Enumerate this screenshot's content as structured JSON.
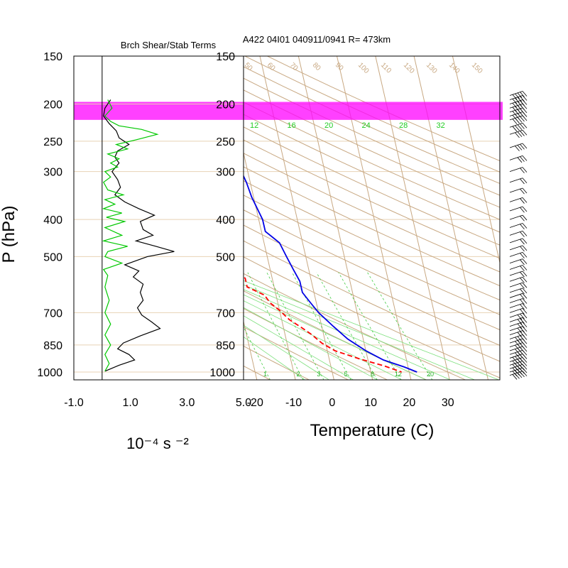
{
  "chart_data": [
    {
      "type": "line",
      "title": "Brch Shear/Stab Terms",
      "xlabel": "10⁻⁴ s ⁻²",
      "ylabel": "P (hPa)",
      "x_ticks": [
        "-1.0",
        "1.0",
        "3.0",
        "5.0"
      ],
      "xlim": [
        -1.0,
        5.0
      ],
      "y_ticks": [
        150,
        200,
        250,
        300,
        400,
        500,
        700,
        850,
        1000
      ],
      "ylim": [
        150,
        1000
      ],
      "y_scale": "log",
      "highlight_band_hpa": [
        200,
        220
      ],
      "highlight_color": "#ff00ff",
      "series": [
        {
          "color": "#000000",
          "points": [
            [
              0.3,
              195
            ],
            [
              0.1,
              205
            ],
            [
              0.05,
              215
            ],
            [
              0.25,
              225
            ],
            [
              0.5,
              235
            ],
            [
              0.6,
              245
            ],
            [
              0.95,
              255
            ],
            [
              0.55,
              265
            ],
            [
              0.45,
              275
            ],
            [
              0.6,
              285
            ],
            [
              0.35,
              300
            ],
            [
              0.55,
              315
            ],
            [
              0.65,
              330
            ],
            [
              0.45,
              345
            ],
            [
              0.8,
              360
            ],
            [
              1.3,
              375
            ],
            [
              1.85,
              390
            ],
            [
              1.35,
              405
            ],
            [
              1.45,
              425
            ],
            [
              1.8,
              440
            ],
            [
              1.2,
              455
            ],
            [
              1.9,
              470
            ],
            [
              2.55,
              485
            ],
            [
              1.6,
              500
            ],
            [
              0.8,
              525
            ],
            [
              1.3,
              545
            ],
            [
              1.1,
              565
            ],
            [
              1.45,
              590
            ],
            [
              1.35,
              620
            ],
            [
              1.45,
              650
            ],
            [
              1.25,
              680
            ],
            [
              1.4,
              710
            ],
            [
              1.75,
              740
            ],
            [
              2.05,
              770
            ],
            [
              1.35,
              805
            ],
            [
              0.75,
              840
            ],
            [
              0.55,
              870
            ],
            [
              0.95,
              900
            ],
            [
              1.15,
              930
            ],
            [
              0.6,
              960
            ],
            [
              0.1,
              995
            ]
          ]
        },
        {
          "color": "#00c800",
          "points": [
            [
              0.2,
              195
            ],
            [
              0.35,
              205
            ],
            [
              0.1,
              215
            ],
            [
              0.3,
              222
            ],
            [
              0.6,
              228
            ],
            [
              1.4,
              233
            ],
            [
              1.95,
              240
            ],
            [
              1.2,
              248
            ],
            [
              0.5,
              255
            ],
            [
              0.9,
              262
            ],
            [
              0.2,
              270
            ],
            [
              0.6,
              278
            ],
            [
              0.3,
              285
            ],
            [
              0.55,
              292
            ],
            [
              0.1,
              300
            ],
            [
              0.3,
              310
            ],
            [
              0.05,
              320
            ],
            [
              0.2,
              335
            ],
            [
              0.75,
              345
            ],
            [
              0.1,
              355
            ],
            [
              0.45,
              365
            ],
            [
              0.05,
              375
            ],
            [
              0.7,
              385
            ],
            [
              0.15,
              395
            ],
            [
              0.8,
              405
            ],
            [
              0.1,
              420
            ],
            [
              0.7,
              440
            ],
            [
              0.05,
              455
            ],
            [
              0.9,
              470
            ],
            [
              0.2,
              485
            ],
            [
              0.1,
              500
            ],
            [
              0.7,
              520
            ],
            [
              0.05,
              540
            ],
            [
              0.2,
              560
            ],
            [
              0.1,
              600
            ],
            [
              0.25,
              650
            ],
            [
              0.1,
              700
            ],
            [
              0.3,
              750
            ],
            [
              0.1,
              800
            ],
            [
              0.3,
              850
            ],
            [
              0.1,
              900
            ],
            [
              0.25,
              950
            ],
            [
              0.1,
              995
            ]
          ]
        }
      ]
    },
    {
      "type": "line",
      "title": "A422 04I01 040911/0941 R= 473km",
      "xlabel": "Temperature (C)",
      "ylabel": "",
      "x_ticks": [
        -20,
        -10,
        0,
        10,
        20,
        30
      ],
      "xlim": [
        -23,
        43.5
      ],
      "y_ticks": [
        150,
        200,
        250,
        300,
        400,
        500,
        700,
        850,
        1000
      ],
      "ylim": [
        150,
        1000
      ],
      "y_scale": "log",
      "skew_dx_per_ln": 53.7,
      "highlight_band_hpa": [
        200,
        220
      ],
      "highlight_color": "#ff00ff",
      "mixing_ratio_labels": [
        "1",
        "2",
        "3",
        "5",
        "8",
        "12",
        "20"
      ],
      "top_labels": [
        "12",
        "16",
        "20",
        "24",
        "28",
        "32"
      ],
      "isotherm_top_labels": [
        "50",
        "60",
        "70",
        "80",
        "90",
        "100",
        "110",
        "120",
        "130",
        "140",
        "150"
      ],
      "series": [
        {
          "name": "temperature",
          "color": "#0000e6",
          "dash": "solid",
          "points": [
            [
              -19,
              185
            ],
            [
              -17,
              195
            ],
            [
              -15.5,
              210
            ],
            [
              -14,
              230
            ],
            [
              -12.5,
              260
            ],
            [
              -12,
              290
            ],
            [
              -11,
              320
            ],
            [
              -10.5,
              350
            ],
            [
              -9,
              400
            ],
            [
              -9,
              430
            ],
            [
              -6,
              460
            ],
            [
              -5,
              500
            ],
            [
              -4,
              540
            ],
            [
              -3,
              580
            ],
            [
              -3,
              620
            ],
            [
              -1.5,
              660
            ],
            [
              0,
              700
            ],
            [
              3,
              760
            ],
            [
              6,
              820
            ],
            [
              10,
              880
            ],
            [
              14,
              930
            ],
            [
              19,
              970
            ],
            [
              22,
              1000
            ]
          ]
        },
        {
          "name": "dewpoint",
          "color": "#ff0000",
          "dash": "dashed",
          "points": [
            [
              -31,
              210
            ],
            [
              -28.5,
              230
            ],
            [
              -28,
              250
            ],
            [
              -32,
              270
            ],
            [
              -31,
              290
            ],
            [
              -35,
              300
            ],
            [
              -32,
              315
            ],
            [
              -33,
              340
            ],
            [
              -32,
              365
            ],
            [
              -27,
              395
            ],
            [
              -25,
              420
            ],
            [
              -22,
              445
            ],
            [
              -26,
              465
            ],
            [
              -23,
              485
            ],
            [
              -22,
              510
            ],
            [
              -20,
              530
            ],
            [
              -18,
              550
            ],
            [
              -17,
              570
            ],
            [
              -17,
              600
            ],
            [
              -13,
              630
            ],
            [
              -12,
              660
            ],
            [
              -10,
              690
            ],
            [
              -8,
              730
            ],
            [
              -5,
              770
            ],
            [
              -3,
              800
            ],
            [
              -1,
              840
            ],
            [
              2,
              880
            ],
            [
              8,
              925
            ],
            [
              14,
              965
            ],
            [
              18,
              1000
            ]
          ]
        }
      ]
    }
  ],
  "wind_barbs": {
    "color": "#000000",
    "levels": [
      [
        190,
        60
      ],
      [
        195,
        70
      ],
      [
        200,
        70
      ],
      [
        205,
        65
      ],
      [
        210,
        60
      ],
      [
        215,
        55
      ],
      [
        220,
        50
      ],
      [
        230,
        45
      ],
      [
        240,
        40
      ],
      [
        260,
        35
      ],
      [
        280,
        25
      ],
      [
        300,
        20
      ],
      [
        320,
        20
      ],
      [
        340,
        20
      ],
      [
        360,
        20
      ],
      [
        380,
        20
      ],
      [
        400,
        20
      ],
      [
        420,
        20
      ],
      [
        440,
        20
      ],
      [
        460,
        20
      ],
      [
        480,
        20
      ],
      [
        500,
        20
      ],
      [
        520,
        20
      ],
      [
        540,
        20
      ],
      [
        560,
        20
      ],
      [
        580,
        20
      ],
      [
        600,
        20
      ],
      [
        620,
        20
      ],
      [
        640,
        20
      ],
      [
        660,
        20
      ],
      [
        680,
        20
      ],
      [
        700,
        20
      ],
      [
        720,
        25
      ],
      [
        740,
        25
      ],
      [
        760,
        25
      ],
      [
        780,
        30
      ],
      [
        800,
        30
      ],
      [
        820,
        35
      ],
      [
        840,
        35
      ],
      [
        860,
        40
      ],
      [
        880,
        40
      ],
      [
        900,
        40
      ],
      [
        920,
        45
      ],
      [
        940,
        45
      ],
      [
        960,
        45
      ],
      [
        980,
        50
      ],
      [
        1000,
        50
      ],
      [
        1020,
        55
      ]
    ]
  }
}
